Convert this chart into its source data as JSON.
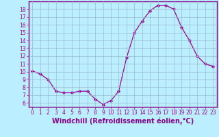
{
  "x": [
    0,
    1,
    2,
    3,
    4,
    5,
    6,
    7,
    8,
    9,
    10,
    11,
    12,
    13,
    14,
    15,
    16,
    17,
    18,
    19,
    20,
    21,
    22,
    23
  ],
  "y": [
    10.1,
    9.7,
    9.0,
    7.5,
    7.3,
    7.3,
    7.5,
    7.5,
    6.5,
    5.8,
    6.3,
    7.5,
    11.8,
    15.0,
    16.5,
    17.8,
    18.5,
    18.5,
    18.0,
    15.7,
    14.0,
    12.0,
    11.0,
    10.7
  ],
  "line_color": "#990099",
  "marker": "D",
  "marker_size": 2.2,
  "bg_color": "#bbeeff",
  "grid_color": "#99bbcc",
  "xlabel": "Windchill (Refroidissement éolien,°C)",
  "xlim": [
    -0.5,
    23.5
  ],
  "ylim": [
    5.5,
    19.0
  ],
  "yticks": [
    6,
    7,
    8,
    9,
    10,
    11,
    12,
    13,
    14,
    15,
    16,
    17,
    18
  ],
  "xticks": [
    0,
    1,
    2,
    3,
    4,
    5,
    6,
    7,
    8,
    9,
    10,
    11,
    12,
    13,
    14,
    15,
    16,
    17,
    18,
    19,
    20,
    21,
    22,
    23
  ],
  "tick_label_fontsize": 5.5,
  "xlabel_fontsize": 7.0,
  "axis_color": "#880088",
  "tick_color": "#990099",
  "spine_color": "#880088",
  "linewidth": 0.9
}
